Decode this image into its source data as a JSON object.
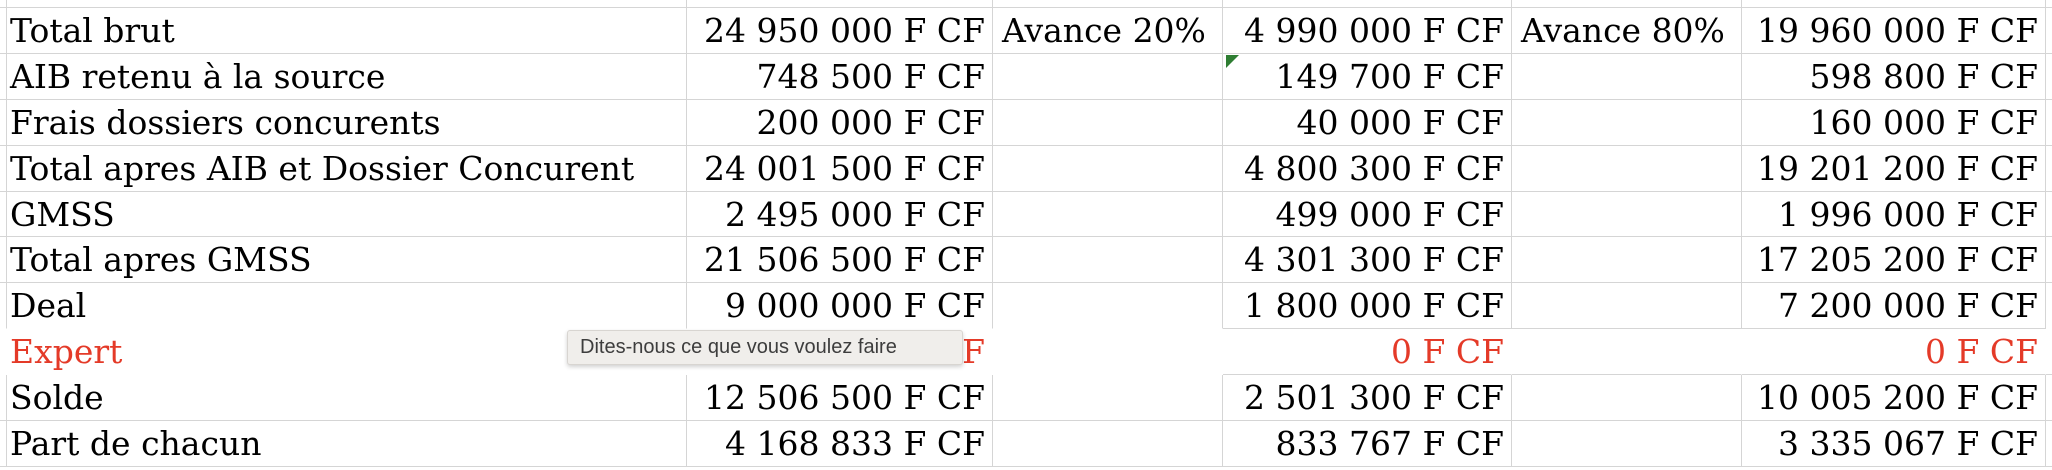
{
  "sheet": {
    "tooltip": {
      "text": "Dites-nous ce que vous voulez faire"
    },
    "colors": {
      "gridline": "#d5d5d5",
      "text": "#000000",
      "red_text": "#e43a28",
      "green_error_indicator": "#2e7d32",
      "tooltip_background": "#f0eeeb",
      "tooltip_text": "#3d3d3d"
    },
    "currency_suffix": "F CF",
    "rows": [
      {
        "label": "Total brut",
        "total": "24 950 000 F CF",
        "avance20_label": "Avance 20%",
        "avance20": "4 990 000 F CF",
        "avance80_label": "Avance 80%",
        "avance80": "19 960 000 F CF"
      },
      {
        "label": "AIB retenu à la source",
        "total": "748 500 F CF",
        "avance20_label": "",
        "avance20": "149 700 F CF",
        "avance80_label": "",
        "avance80": "598 800 F CF"
      },
      {
        "label": "Frais dossiers concurents",
        "total": "200 000 F CF",
        "avance20_label": "",
        "avance20": "40 000 F CF",
        "avance80_label": "",
        "avance80": "160 000 F CF"
      },
      {
        "label": "Total apres AIB et Dossier Concurent",
        "total": "24 001 500 F CF",
        "avance20_label": "",
        "avance20": "4 800 300 F CF",
        "avance80_label": "",
        "avance80": "19 201 200 F CF"
      },
      {
        "label": "GMSS",
        "total": "2 495 000 F CF",
        "avance20_label": "",
        "avance20": "499 000 F CF",
        "avance80_label": "",
        "avance80": "1 996 000 F CF"
      },
      {
        "label": "Total apres GMSS",
        "total": "21 506 500 F CF",
        "avance20_label": "",
        "avance20": "4 301 300 F CF",
        "avance80_label": "",
        "avance80": "17 205 200 F CF"
      },
      {
        "label": "Deal",
        "total": "9 000 000 F CF",
        "avance20_label": "",
        "avance20": "1 800 000 F CF",
        "avance80_label": "",
        "avance80": "7 200 000 F CF"
      },
      {
        "label": "Expert",
        "total": "0 F CF",
        "avance20_label": "",
        "avance20": "0 F CF",
        "avance80_label": "",
        "avance80": "0 F CF"
      },
      {
        "label": "Solde",
        "total": "12 506 500 F CF",
        "avance20_label": "",
        "avance20": "2 501 300 F CF",
        "avance80_label": "",
        "avance80": "10 005 200 F CF"
      },
      {
        "label": "Part de chacun",
        "total": "4 168 833 F CF",
        "avance20_label": "",
        "avance20": "833 767 F CF",
        "avance80_label": "",
        "avance80": "3 335 067 F CF"
      }
    ]
  }
}
